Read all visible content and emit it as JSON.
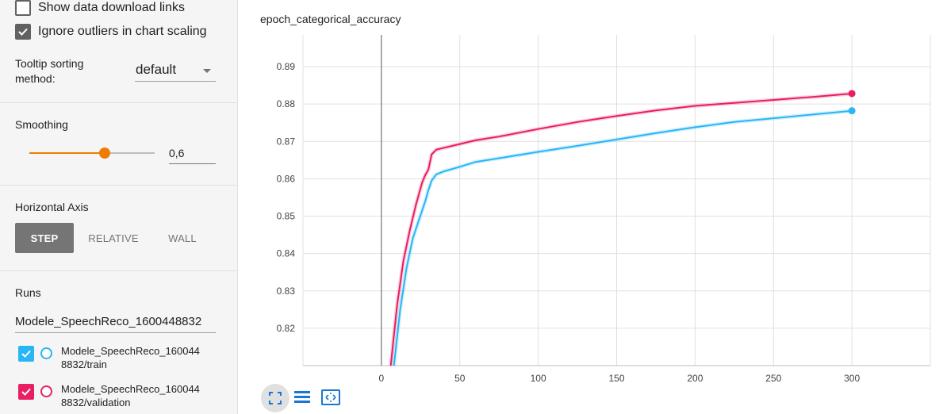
{
  "sidebar": {
    "show_download_links": {
      "label": "Show data download links",
      "checked": false
    },
    "ignore_outliers": {
      "label": "Ignore outliers in chart scaling",
      "checked": true
    },
    "tooltip_sorting": {
      "label_line1": "Tooltip sorting",
      "label_line2": "method:",
      "value": "default"
    },
    "smoothing": {
      "label": "Smoothing",
      "value_text": "0,6",
      "value": 0.6
    },
    "horizontal_axis": {
      "label": "Horizontal Axis",
      "options": [
        {
          "label": "STEP",
          "active": true
        },
        {
          "label": "RELATIVE",
          "active": false
        },
        {
          "label": "WALL",
          "active": false
        }
      ]
    },
    "runs": {
      "label": "Runs",
      "filter_value": "Modele_SpeechReco_1600448832",
      "items": [
        {
          "line1": "Modele_SpeechReco_160044",
          "line2": "8832/train",
          "color": "#29b6f6",
          "checked": true
        },
        {
          "line1": "Modele_SpeechReco_160044",
          "line2": "8832/validation",
          "color": "#e91e63",
          "checked": true
        }
      ]
    }
  },
  "chart": {
    "title": "epoch_categorical_accuracy",
    "tools": [
      "fit-domain-icon",
      "toggle-log-icon",
      "expand-icon"
    ]
  },
  "chart_data": {
    "type": "line",
    "title": "epoch_categorical_accuracy",
    "xlabel": "",
    "ylabel": "",
    "xlim": [
      -50,
      350
    ],
    "ylim": [
      0.81,
      0.8985
    ],
    "x_ticks": [
      0,
      50,
      100,
      150,
      200,
      250,
      300
    ],
    "x_tick_labels": [
      "0",
      "50",
      "100",
      "150",
      "200",
      "250",
      "300"
    ],
    "y_ticks": [
      0.82,
      0.83,
      0.84,
      0.85,
      0.86,
      0.87,
      0.88,
      0.89
    ],
    "y_tick_labels": [
      "0.82",
      "0.83",
      "0.84",
      "0.85",
      "0.86",
      "0.87",
      "0.88",
      "0.89"
    ],
    "grid": true,
    "series": [
      {
        "name": "",
        "color": "#29b6f6",
        "x": [
          8,
          12,
          16,
          20,
          24,
          28,
          30,
          32,
          35,
          40,
          50,
          60,
          75,
          100,
          125,
          150,
          175,
          200,
          225,
          250,
          275,
          300
        ],
        "y": [
          0.81,
          0.825,
          0.836,
          0.844,
          0.849,
          0.854,
          0.857,
          0.8595,
          0.8612,
          0.862,
          0.8632,
          0.8645,
          0.8655,
          0.8672,
          0.8688,
          0.8705,
          0.8722,
          0.8738,
          0.8752,
          0.8762,
          0.8772,
          0.8782
        ]
      },
      {
        "name": "",
        "color": "#e91e63",
        "x": [
          6,
          10,
          14,
          18,
          22,
          26,
          28,
          30,
          32,
          35,
          40,
          50,
          60,
          75,
          100,
          125,
          150,
          175,
          200,
          225,
          250,
          275,
          300
        ],
        "y": [
          0.81,
          0.826,
          0.838,
          0.846,
          0.853,
          0.859,
          0.861,
          0.8625,
          0.8665,
          0.8678,
          0.8683,
          0.8693,
          0.8703,
          0.8713,
          0.8733,
          0.8752,
          0.8768,
          0.8783,
          0.8795,
          0.8803,
          0.8811,
          0.8819,
          0.8828
        ]
      }
    ],
    "vertical_marker_x": 0
  }
}
